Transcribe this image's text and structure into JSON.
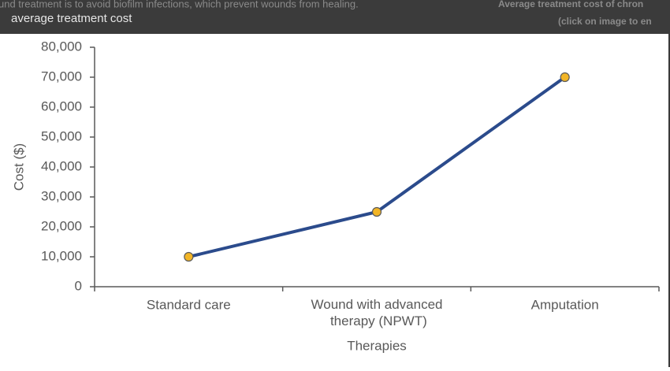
{
  "overlay": {
    "caption": "average treatment cost",
    "background_text": "und treatment is to avoid biofilm infections, which prevent wounds from healing.",
    "side_title": "Average treatment cost of chron",
    "side_hint": "(click on image to en"
  },
  "chart_data": {
    "type": "line",
    "categories": [
      "Standard care",
      "Wound with advanced therapy (NPWT)",
      "Amputation"
    ],
    "series": [
      {
        "name": "Cost",
        "color": "#2b4b8c",
        "marker_color": "#f2b526",
        "values": [
          10000,
          25000,
          70000
        ]
      }
    ],
    "ylabel": "Cost ($)",
    "xlabel": "Therapies",
    "ylim": [
      0,
      80000
    ],
    "yticks": [
      0,
      {
        "value": 10000,
        "label": "10,000"
      },
      {
        "value": 20000,
        "label": "20,000"
      },
      {
        "value": 30000,
        "label": "30,000"
      },
      {
        "value": 40000,
        "label": "40,000"
      },
      {
        "value": 50000,
        "label": "50,000"
      },
      {
        "value": 60000,
        "label": "60,000"
      },
      {
        "value": 70000,
        "label": "70,000"
      },
      {
        "value": 80000,
        "label": "80,000"
      }
    ]
  }
}
